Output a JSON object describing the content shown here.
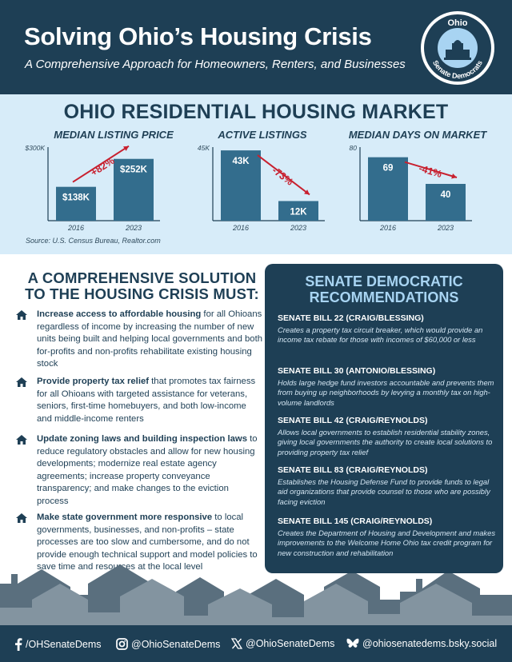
{
  "header": {
    "title": "Solving Ohio’s Housing Crisis",
    "subtitle": "A Comprehensive Approach for Homeowners, Renters, and Businesses",
    "seal_top": "Ohio",
    "seal_bottom": "Senate Democrats"
  },
  "market": {
    "title": "OHIO RESIDENTIAL HOUSING MARKET",
    "source": "Source:  U.S. Census Bureau, Realtor.com"
  },
  "chart_data": [
    {
      "type": "bar",
      "title": "MEDIAN LISTING PRICE",
      "categories": [
        "2016",
        "2023"
      ],
      "values": [
        138000,
        252000
      ],
      "data_labels": [
        "$138K",
        "$252K"
      ],
      "ylim": [
        0,
        300000
      ],
      "ytick_label": "$300K",
      "change_label": "+82%",
      "change_direction": "up"
    },
    {
      "type": "bar",
      "title": "ACTIVE LISTINGS",
      "categories": [
        "2016",
        "2023"
      ],
      "values": [
        43000,
        12000
      ],
      "data_labels": [
        "43K",
        "12K"
      ],
      "ylim": [
        0,
        45000
      ],
      "ytick_label": "45K",
      "change_label": "-73%",
      "change_direction": "down"
    },
    {
      "type": "bar",
      "title": "MEDIAN DAYS ON MARKET",
      "categories": [
        "2016",
        "2023"
      ],
      "values": [
        69,
        40
      ],
      "data_labels": [
        "69",
        "40"
      ],
      "ylim": [
        0,
        80
      ],
      "ytick_label": "80",
      "change_label": "-41%",
      "change_direction": "down"
    }
  ],
  "solution": {
    "title_line1": "A COMPREHENSIVE SOLUTION",
    "title_line2": "TO THE HOUSING CRISIS MUST:",
    "items": [
      {
        "bold": "Increase access to affordable housing",
        "rest": " for all Ohioans regardless of income by increasing the number of new units being built and helping local governments and both for-profits and non-profits rehabilitate existing housing stock"
      },
      {
        "bold": "Provide property tax relief",
        "rest": " that promotes tax fairness for all Ohioans with targeted assistance for veterans, seniors, first-time homebuyers, and both low-income and middle-income renters"
      },
      {
        "bold": "Update zoning laws and building inspection laws",
        "rest": " to reduce regulatory obstacles and allow for new housing developments; modernize real estate agency agreements; increase property conveyance transparency; and make changes to the eviction process"
      },
      {
        "bold": "Make state government more responsive",
        "rest": " to local governments, businesses, and non-profits – state processes are too slow and cumbersome, and do not provide enough technical support and model policies to save time and resources at the local level"
      }
    ]
  },
  "recommendations": {
    "title_line1": "SENATE DEMOCRATIC",
    "title_line2": "RECOMMENDATIONS",
    "bills": [
      {
        "name": "SENATE BILL 22 (CRAIG/BLESSING)",
        "desc": "Creates a property tax circuit breaker, which would provide an income tax rebate for those with incomes of $60,000 or less"
      },
      {
        "name": "SENATE BILL 30 (ANTONIO/BLESSING)",
        "desc": "Holds large hedge fund investors accountable and prevents them from buying up neighborhoods by levying a monthly tax on high-volume landlords"
      },
      {
        "name": "SENATE BILL 42 (CRAIG/REYNOLDS)",
        "desc": "Allows local governments to establish residential stability zones, giving local governments the authority to create local solutions to providing property tax relief"
      },
      {
        "name": "SENATE BILL 83 (CRAIG/REYNOLDS)",
        "desc": "Establishes the Housing Defense Fund to provide funds to legal aid organizations that provide counsel to those who are possibly facing eviction"
      },
      {
        "name": "SENATE BILL 145 (CRAIG/REYNOLDS)",
        "desc": "Creates the Department of Housing and Development and makes improvements to the Welcome Home Ohio tax credit program for new construction and rehabilitation"
      }
    ]
  },
  "footer": {
    "facebook": "/OHSenateDems",
    "instagram": "@OhioSenateDems",
    "x": "@OhioSenateDems",
    "bluesky": "@ohiosenatedems.bsky.social"
  },
  "colors": {
    "navy": "#1e3f55",
    "bar": "#336d8d",
    "light_blue_bg": "#d7ecf9",
    "accent_red": "#c8202f",
    "rec_title": "#a8d4f2"
  }
}
